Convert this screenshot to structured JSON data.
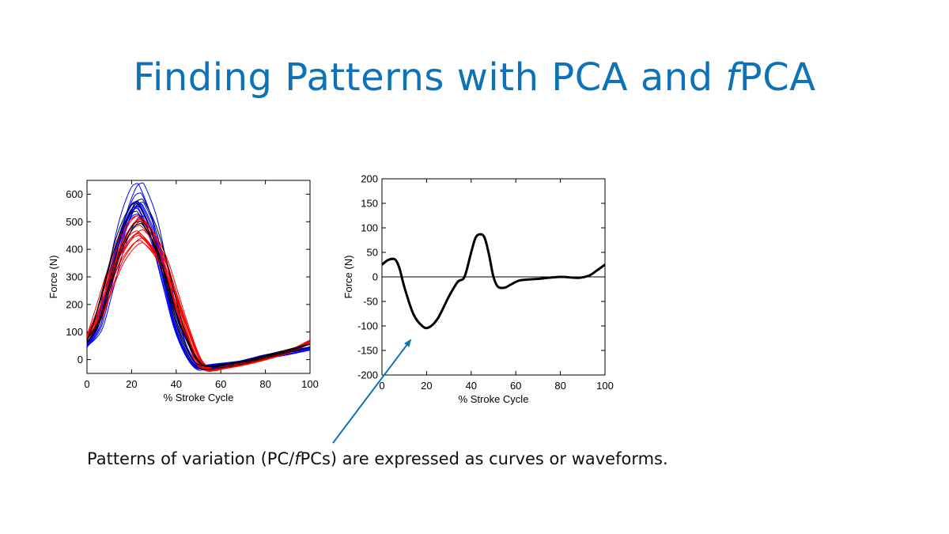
{
  "slide": {
    "title_part1": "Finding Patterns with PCA and ",
    "title_ital": "f",
    "title_part2": "PCA",
    "title_color": "#0e72b7",
    "caption_part1": "Patterns of variation (PC/",
    "caption_ital": "f",
    "caption_part2": "PCs) are expressed as curves or waveforms.",
    "arrow_color": "#0e72b7"
  },
  "chart_data": [
    {
      "type": "line",
      "title": "",
      "xlabel": "% Stroke Cycle",
      "ylabel": "Force (N)",
      "xlim": [
        0,
        100
      ],
      "ylim": [
        -50,
        650
      ],
      "xticks": [
        0,
        20,
        40,
        60,
        80,
        100
      ],
      "yticks": [
        0,
        100,
        200,
        300,
        400,
        500,
        600
      ],
      "grid": false,
      "legend": "none",
      "note": "Many overlaid individual trials: blue group, red group, black group",
      "series": [
        {
          "color": "#0000ff",
          "count": 14,
          "x": [
            0,
            5,
            10,
            15,
            20,
            23,
            25,
            30,
            35,
            40,
            45,
            50,
            55,
            60,
            70,
            80,
            90,
            100
          ],
          "values": [
            50,
            120,
            280,
            450,
            560,
            585,
            570,
            470,
            300,
            130,
            20,
            -30,
            -25,
            -20,
            -10,
            10,
            25,
            40
          ]
        },
        {
          "color": "#ff0000",
          "count": 14,
          "x": [
            0,
            5,
            10,
            15,
            20,
            23,
            25,
            30,
            35,
            40,
            45,
            50,
            55,
            60,
            70,
            80,
            90,
            100
          ],
          "values": [
            80,
            160,
            280,
            390,
            455,
            475,
            470,
            420,
            340,
            220,
            100,
            0,
            -35,
            -30,
            -15,
            5,
            30,
            65
          ]
        },
        {
          "color": "#000000",
          "count": 5,
          "x": [
            0,
            5,
            10,
            15,
            20,
            23,
            25,
            30,
            35,
            40,
            45,
            50,
            55,
            60,
            70,
            80,
            90,
            100
          ],
          "values": [
            65,
            140,
            280,
            420,
            505,
            525,
            515,
            440,
            320,
            170,
            55,
            -15,
            -30,
            -25,
            -12,
            8,
            28,
            52
          ]
        }
      ]
    },
    {
      "type": "line",
      "title": "",
      "xlabel": "% Stroke Cycle",
      "ylabel": "Force (N)",
      "xlim": [
        0,
        100
      ],
      "ylim": [
        -200,
        200
      ],
      "xticks": [
        0,
        20,
        40,
        60,
        80,
        100
      ],
      "yticks": [
        -200,
        -150,
        -100,
        -50,
        0,
        50,
        100,
        150,
        200
      ],
      "grid": false,
      "zero_line": true,
      "legend": "none",
      "series": [
        {
          "color": "#000000",
          "x": [
            0,
            3,
            6,
            8,
            10,
            14,
            18,
            21,
            25,
            30,
            34,
            37,
            40,
            42,
            44,
            46,
            48,
            50,
            52,
            55,
            58,
            62,
            70,
            80,
            88,
            93,
            96,
            100
          ],
          "values": [
            25,
            35,
            35,
            15,
            -20,
            -75,
            -100,
            -103,
            -85,
            -40,
            -10,
            0,
            50,
            80,
            87,
            80,
            45,
            0,
            -20,
            -22,
            -15,
            -7,
            -4,
            0,
            -2,
            3,
            12,
            25
          ]
        }
      ]
    }
  ]
}
